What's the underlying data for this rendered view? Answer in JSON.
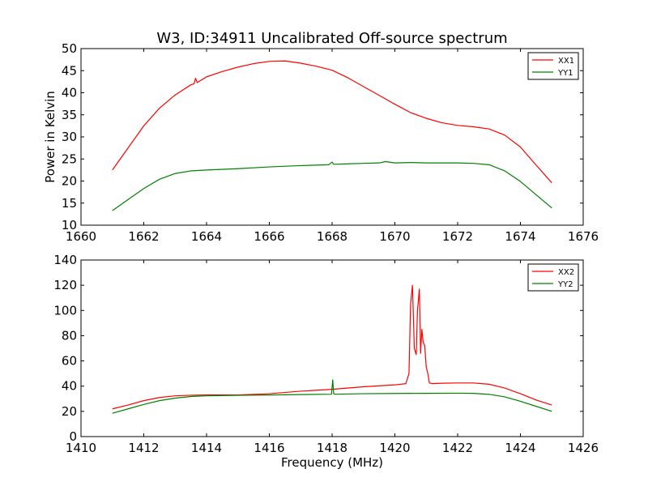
{
  "chart_data": [
    {
      "type": "line",
      "title": "W3, ID:34911 Uncalibrated Off-source spectrum",
      "xlabel": "",
      "ylabel": "Power in Kelvin",
      "xlim": [
        1660,
        1676
      ],
      "ylim": [
        10,
        50
      ],
      "xticks": [
        1660,
        1662,
        1664,
        1666,
        1668,
        1670,
        1672,
        1674,
        1676
      ],
      "yticks": [
        10,
        15,
        20,
        25,
        30,
        35,
        40,
        45,
        50
      ],
      "legend_position": "top-right",
      "grid": false,
      "series": [
        {
          "name": "XX1",
          "color": "#ff0000",
          "x": [
            1661.0,
            1661.5,
            1662.0,
            1662.5,
            1663.0,
            1663.5,
            1663.6,
            1663.65,
            1663.7,
            1664.0,
            1664.5,
            1665.0,
            1665.5,
            1666.0,
            1666.5,
            1667.0,
            1667.5,
            1668.0,
            1668.5,
            1669.0,
            1669.5,
            1670.0,
            1670.5,
            1671.0,
            1671.5,
            1672.0,
            1672.5,
            1673.0,
            1673.5,
            1674.0,
            1674.5,
            1675.0
          ],
          "y": [
            22.5,
            27.5,
            32.5,
            36.5,
            39.5,
            41.8,
            42.0,
            43.3,
            42.3,
            43.6,
            44.8,
            45.8,
            46.6,
            47.1,
            47.2,
            46.7,
            46.0,
            45.1,
            43.4,
            41.4,
            39.4,
            37.4,
            35.5,
            34.2,
            33.2,
            32.6,
            32.3,
            31.8,
            30.4,
            27.7,
            23.6,
            19.6
          ]
        },
        {
          "name": "YY1",
          "color": "#008000",
          "x": [
            1661.0,
            1661.5,
            1662.0,
            1662.5,
            1663.0,
            1663.5,
            1664.0,
            1665.0,
            1666.0,
            1667.0,
            1667.9,
            1668.0,
            1668.05,
            1668.1,
            1668.5,
            1669.0,
            1669.5,
            1669.7,
            1670.0,
            1670.5,
            1671.0,
            1671.5,
            1672.0,
            1672.5,
            1673.0,
            1673.5,
            1674.0,
            1674.5,
            1675.0
          ],
          "y": [
            13.3,
            15.8,
            18.3,
            20.4,
            21.7,
            22.3,
            22.5,
            22.8,
            23.2,
            23.5,
            23.7,
            24.3,
            23.8,
            23.8,
            23.9,
            24.0,
            24.1,
            24.4,
            24.1,
            24.2,
            24.1,
            24.1,
            24.1,
            24.0,
            23.7,
            22.3,
            19.9,
            16.9,
            13.9
          ]
        }
      ]
    },
    {
      "type": "line",
      "title": "",
      "xlabel": "Frequency (MHz)",
      "ylabel": "",
      "xlim": [
        1410,
        1426
      ],
      "ylim": [
        0,
        140
      ],
      "xticks": [
        1410,
        1412,
        1414,
        1416,
        1418,
        1420,
        1422,
        1424,
        1426
      ],
      "yticks": [
        0,
        20,
        40,
        60,
        80,
        100,
        120,
        140
      ],
      "legend_position": "top-right",
      "grid": false,
      "series": [
        {
          "name": "XX2",
          "color": "#ff0000",
          "x": [
            1411.0,
            1411.5,
            1412.0,
            1412.5,
            1413.0,
            1413.5,
            1414.0,
            1415.0,
            1416.0,
            1417.0,
            1418.0,
            1419.0,
            1420.0,
            1420.35,
            1420.45,
            1420.5,
            1420.56,
            1420.62,
            1420.68,
            1420.72,
            1420.78,
            1420.82,
            1420.86,
            1420.9,
            1420.95,
            1421.0,
            1421.05,
            1421.1,
            1421.2,
            1421.5,
            1422.0,
            1422.5,
            1423.0,
            1423.5,
            1424.0,
            1424.5,
            1425.0
          ],
          "y": [
            22.0,
            25.0,
            28.5,
            31.0,
            32.3,
            32.8,
            33.0,
            33.0,
            34.0,
            36.0,
            37.5,
            39.5,
            41.0,
            42.0,
            50.0,
            105.0,
            120.0,
            70.0,
            65.0,
            100.0,
            117.0,
            66.0,
            85.0,
            75.0,
            72.0,
            55.0,
            50.0,
            42.5,
            42.0,
            42.3,
            42.5,
            42.5,
            41.5,
            38.5,
            34.0,
            29.0,
            25.0
          ]
        },
        {
          "name": "YY2",
          "color": "#008000",
          "x": [
            1411.0,
            1411.5,
            1412.0,
            1412.5,
            1413.0,
            1413.5,
            1414.0,
            1415.0,
            1416.0,
            1417.0,
            1417.98,
            1418.02,
            1418.05,
            1418.1,
            1419.0,
            1420.0,
            1421.0,
            1422.0,
            1422.5,
            1423.0,
            1423.5,
            1424.0,
            1424.5,
            1425.0
          ],
          "y": [
            18.5,
            22.0,
            25.5,
            28.5,
            30.5,
            31.8,
            32.3,
            32.7,
            33.0,
            33.3,
            33.6,
            45.0,
            34.0,
            33.6,
            34.0,
            34.2,
            34.3,
            34.4,
            34.3,
            33.5,
            31.5,
            28.0,
            24.0,
            20.0
          ]
        }
      ]
    }
  ]
}
